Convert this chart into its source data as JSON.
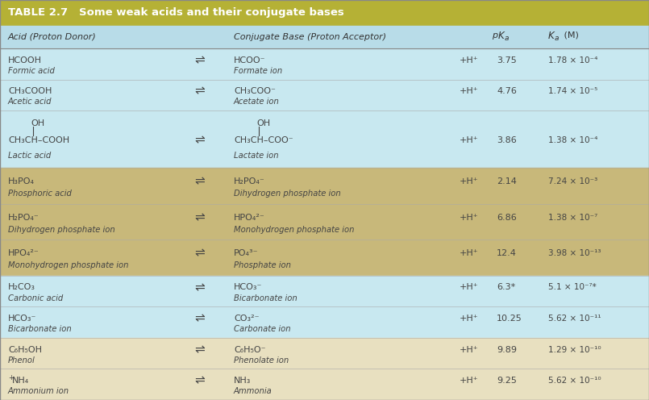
{
  "title": "TABLE 2.7   Some weak acids and their conjugate bases",
  "title_bg": "#b5b135",
  "title_color": "#ffffff",
  "header_bg": "#b8dce8",
  "col_headers": [
    "Acid (Proton Donor)",
    "Conjugate Base (Proton Acceptor)",
    "pKa",
    "Ka (M)"
  ],
  "row_groups": [
    {
      "bg": "#c8e8f0",
      "rows": [
        {
          "acid_main": "HCOOH",
          "acid_sub": "Formic acid",
          "base_main": "HCOO⁻",
          "base_sub": "Formate ion",
          "pka": "3.75",
          "ka": "1.78 × 10⁻⁴",
          "acid_super": null,
          "base_super": null,
          "lactic": false
        },
        {
          "acid_main": "CH₃COOH",
          "acid_sub": "Acetic acid",
          "base_main": "CH₃COO⁻",
          "base_sub": "Acetate ion",
          "pka": "4.76",
          "ka": "1.74 × 10⁻⁵",
          "acid_super": null,
          "base_super": null,
          "lactic": false
        },
        {
          "acid_main": "CH₃CH–COOH",
          "acid_sub": "Lactic acid",
          "base_main": "CH₃CH–COO⁻",
          "base_sub": "Lactate ion",
          "pka": "3.86",
          "ka": "1.38 × 10⁻⁴",
          "acid_super": null,
          "base_super": null,
          "lactic": true
        }
      ]
    },
    {
      "bg": "#c8b87a",
      "rows": [
        {
          "acid_main": "H₃PO₄",
          "acid_sub": "Phosphoric acid",
          "base_main": "H₂PO₄⁻",
          "base_sub": "Dihydrogen phosphate ion",
          "pka": "2.14",
          "ka": "7.24 × 10⁻³",
          "acid_super": null,
          "base_super": null,
          "lactic": false
        },
        {
          "acid_main": "H₂PO₄⁻",
          "acid_sub": "Dihydrogen phosphate ion",
          "base_main": "HPO₄²⁻",
          "base_sub": "Monohydrogen phosphate ion",
          "pka": "6.86",
          "ka": "1.38 × 10⁻⁷",
          "acid_super": null,
          "base_super": null,
          "lactic": false
        },
        {
          "acid_main": "HPO₄²⁻",
          "acid_sub": "Monohydrogen phosphate ion",
          "base_main": "PO₄³⁻",
          "base_sub": "Phosphate ion",
          "pka": "12.4",
          "ka": "3.98 × 10⁻¹³",
          "acid_super": null,
          "base_super": null,
          "lactic": false
        }
      ]
    },
    {
      "bg": "#c8e8f0",
      "rows": [
        {
          "acid_main": "H₂CO₃",
          "acid_sub": "Carbonic acid",
          "base_main": "HCO₃⁻",
          "base_sub": "Bicarbonate ion",
          "pka": "6.3*",
          "ka": "5.1 × 10⁻⁷*",
          "acid_super": null,
          "base_super": null,
          "lactic": false
        },
        {
          "acid_main": "HCO₃⁻",
          "acid_sub": "Bicarbonate ion",
          "base_main": "CO₃²⁻",
          "base_sub": "Carbonate ion",
          "pka": "10.25",
          "ka": "5.62 × 10⁻¹¹",
          "acid_super": null,
          "base_super": null,
          "lactic": false
        }
      ]
    },
    {
      "bg": "#e8e0c0",
      "rows": [
        {
          "acid_main": "C₆H₅OH",
          "acid_sub": "Phenol",
          "base_main": "C₆H₅O⁻",
          "base_sub": "Phenolate ion",
          "pka": "9.89",
          "ka": "1.29 × 10⁻¹⁰",
          "acid_super": null,
          "base_super": null,
          "lactic": false
        },
        {
          "acid_main": "NH₄",
          "acid_sub": "Ammonium ion",
          "base_main": "NH₃",
          "base_sub": "Ammonia",
          "pka": "9.25",
          "ka": "5.62 × 10⁻¹⁰",
          "acid_super": "+",
          "base_super": null,
          "lactic": false
        }
      ]
    }
  ]
}
